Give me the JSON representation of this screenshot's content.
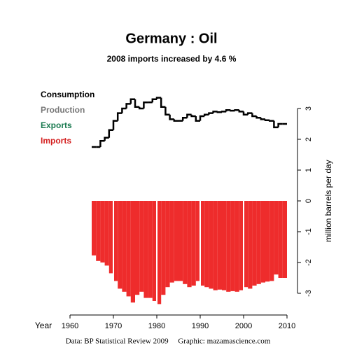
{
  "chart_data": {
    "type": "step-bar",
    "title": "Germany :  Oil",
    "subtitle": "2008 imports increased by 4.6 %",
    "x_label": "Year",
    "y_label": "million barrels per day",
    "footer": "Data: BP Statistical Review 2009     Graphic: mazamascience.com",
    "legend": [
      {
        "name": "Consumption",
        "color": "#000000"
      },
      {
        "name": "Production",
        "color": "#777777"
      },
      {
        "name": "Exports",
        "color": "#1a7a50"
      },
      {
        "name": "Imports",
        "color": "#d42020"
      }
    ],
    "x": [
      1965,
      1966,
      1967,
      1968,
      1969,
      1970,
      1971,
      1972,
      1973,
      1974,
      1975,
      1976,
      1977,
      1978,
      1979,
      1980,
      1981,
      1982,
      1983,
      1984,
      1985,
      1986,
      1987,
      1988,
      1989,
      1990,
      1991,
      1992,
      1993,
      1994,
      1995,
      1996,
      1997,
      1998,
      1999,
      2000,
      2001,
      2002,
      2003,
      2004,
      2005,
      2006,
      2007,
      2008,
      2009
    ],
    "series": [
      {
        "name": "Consumption",
        "color": "#000000",
        "values": [
          1.75,
          1.75,
          1.95,
          2.05,
          2.3,
          2.6,
          2.85,
          3.0,
          3.15,
          3.3,
          3.05,
          3.0,
          3.2,
          3.2,
          3.3,
          3.35,
          3.05,
          2.8,
          2.65,
          2.6,
          2.6,
          2.7,
          2.8,
          2.75,
          2.6,
          2.75,
          2.8,
          2.85,
          2.9,
          2.88,
          2.9,
          2.95,
          2.93,
          2.95,
          2.9,
          2.8,
          2.85,
          2.75,
          2.7,
          2.65,
          2.62,
          2.6,
          2.39,
          2.5,
          2.5
        ]
      },
      {
        "name": "Imports",
        "color": "#ee2c2c",
        "values": [
          -1.77,
          -1.95,
          -2.0,
          -2.1,
          -2.35,
          -2.6,
          -2.85,
          -2.95,
          -3.1,
          -3.3,
          -3.05,
          -2.95,
          -3.15,
          -3.15,
          -3.25,
          -3.35,
          -3.05,
          -2.8,
          -2.65,
          -2.6,
          -2.6,
          -2.7,
          -2.8,
          -2.75,
          -2.6,
          -2.75,
          -2.8,
          -2.85,
          -2.9,
          -2.88,
          -2.9,
          -2.95,
          -2.93,
          -2.95,
          -2.9,
          -2.8,
          -2.85,
          -2.75,
          -2.7,
          -2.65,
          -2.62,
          -2.6,
          -2.39,
          -2.5,
          -2.5
        ]
      }
    ],
    "xlim": [
      1960,
      2010
    ],
    "xticks": [
      1960,
      1970,
      1980,
      1990,
      2000,
      2010
    ],
    "ylim": [
      -3.7,
      3.6
    ],
    "yticks": [
      -3,
      -2,
      -1,
      0,
      1,
      2,
      3
    ]
  }
}
